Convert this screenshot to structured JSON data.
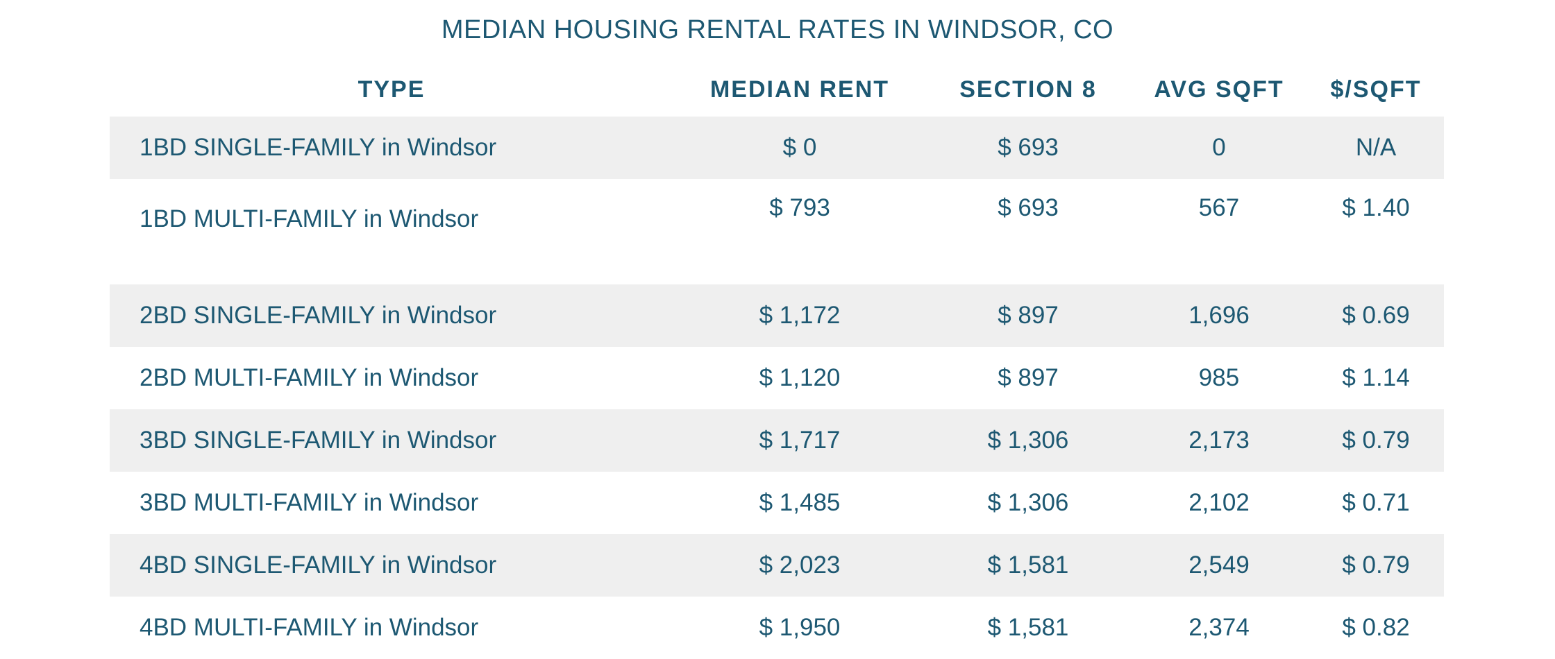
{
  "chart_data": {
    "type": "table",
    "title": "MEDIAN HOUSING RENTAL RATES IN WINDSOR, CO",
    "columns": [
      "TYPE",
      "MEDIAN RENT",
      "SECTION 8",
      "AVG SQFT",
      "$/SQFT"
    ],
    "rows": [
      [
        "1BD SINGLE-FAMILY in Windsor",
        "$ 0",
        "$ 693",
        "0",
        "N/A"
      ],
      [
        "1BD MULTI-FAMILY in Windsor",
        "$ 793",
        "$ 693",
        "567",
        "$ 1.40"
      ],
      [
        "2BD SINGLE-FAMILY in Windsor",
        "$ 1,172",
        "$ 897",
        "1,696",
        "$ 0.69"
      ],
      [
        "2BD MULTI-FAMILY in Windsor",
        "$ 1,120",
        "$ 897",
        "985",
        "$ 1.14"
      ],
      [
        "3BD SINGLE-FAMILY in Windsor",
        "$ 1,717",
        "$ 1,306",
        "2,173",
        "$ 0.79"
      ],
      [
        "3BD MULTI-FAMILY in Windsor",
        "$ 1,485",
        "$ 1,306",
        "2,102",
        "$ 0.71"
      ],
      [
        "4BD SINGLE-FAMILY in Windsor",
        "$ 2,023",
        "$ 1,581",
        "2,549",
        "$ 0.79"
      ],
      [
        "4BD MULTI-FAMILY in Windsor",
        "$ 1,950",
        "$ 1,581",
        "2,374",
        "$ 0.82"
      ]
    ]
  },
  "colors": {
    "text": "#1d5872",
    "row_shade": "#efefef",
    "background": "#ffffff"
  }
}
